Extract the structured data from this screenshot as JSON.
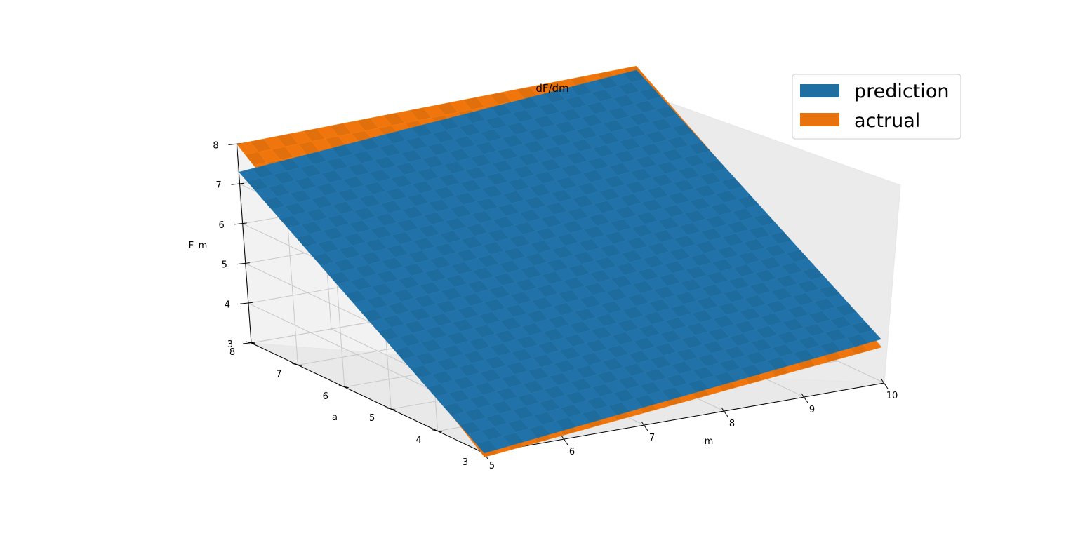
{
  "chart_data": {
    "type": "surface3d",
    "title": "dF/dm",
    "xlabel": "m",
    "ylabel": "a",
    "zlabel": "F_m",
    "xlim": [
      5,
      10
    ],
    "ylim": [
      3,
      8
    ],
    "zlim": [
      3,
      8
    ],
    "x_ticks": [
      5,
      6,
      7,
      8,
      9,
      10
    ],
    "y_ticks": [
      3,
      4,
      5,
      6,
      7,
      8
    ],
    "z_ticks": [
      3,
      4,
      5,
      6,
      7,
      8
    ],
    "legend_position": "top-right",
    "series": [
      {
        "name": "prediction",
        "color": "#1f6fa3",
        "corners": {
          "m5_a3": 3.0,
          "m10_a3": 4.1,
          "m5_a8": 7.3,
          "m10_a8": 8.1
        }
      },
      {
        "name": "actrual",
        "color": "#e8720c",
        "corners": {
          "m5_a3": 2.9,
          "m10_a3": 3.9,
          "m5_a8": 8.0,
          "m10_a8": 8.2
        }
      }
    ]
  }
}
